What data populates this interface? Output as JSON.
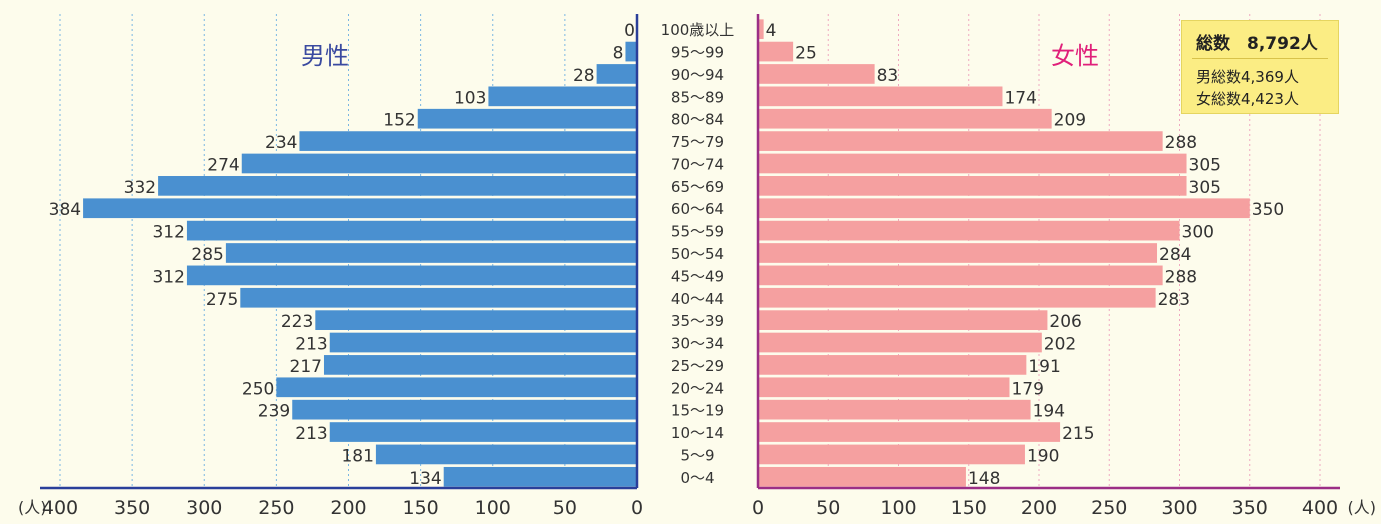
{
  "chart_data": {
    "type": "bar",
    "categories": [
      "100歳以上",
      "95～99",
      "90～94",
      "85～89",
      "80～84",
      "75～79",
      "70～74",
      "65～69",
      "60～64",
      "55～59",
      "50～54",
      "45～49",
      "40～44",
      "35～39",
      "30～34",
      "25～29",
      "20～24",
      "15～19",
      "10～14",
      "5～9",
      "0～4"
    ],
    "series": [
      {
        "name": "男性",
        "values": [
          0,
          8,
          28,
          103,
          152,
          234,
          274,
          332,
          384,
          312,
          285,
          312,
          275,
          223,
          213,
          217,
          250,
          239,
          213,
          181,
          134
        ]
      },
      {
        "name": "女性",
        "values": [
          4,
          25,
          83,
          174,
          209,
          288,
          305,
          305,
          350,
          300,
          284,
          288,
          283,
          206,
          202,
          191,
          179,
          194,
          215,
          190,
          148
        ]
      }
    ],
    "xlim": [
      0,
      400
    ],
    "xticks": [
      "0",
      "50",
      "100",
      "150",
      "200",
      "250",
      "300",
      "350",
      "400"
    ],
    "unit_label": "(人)",
    "grid": true,
    "colors": {
      "male": "#4a90d0",
      "female": "#f5a0a0",
      "male_axis": "#2a3f9a",
      "female_axis": "#9b2e86",
      "male_title": "#3a4aa0",
      "female_title": "#e0207a"
    }
  },
  "summary": {
    "total": "総数　8,792人",
    "male": "男総数4,369人",
    "female": "女総数4,423人"
  }
}
